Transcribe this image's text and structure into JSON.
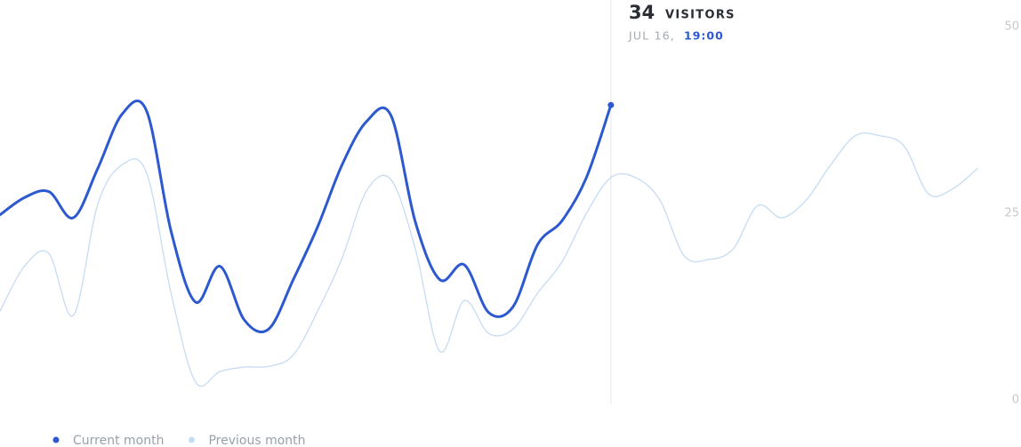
{
  "chart_data": {
    "type": "line",
    "categories": [
      null,
      null,
      null,
      null,
      null,
      null,
      null,
      null,
      null,
      null,
      null,
      null,
      null,
      null,
      null,
      null,
      null,
      null,
      null,
      null,
      null,
      null,
      null,
      null,
      null,
      null,
      null,
      null,
      null,
      null,
      null,
      null,
      null,
      null,
      null,
      null,
      null,
      null,
      null,
      null,
      null
    ],
    "series": [
      {
        "name": "Current month",
        "color": "#2c58d0",
        "values": [
          24.8,
          27.1,
          27.9,
          24.4,
          31,
          38.3,
          38.7,
          22.6,
          13.1,
          17.9,
          10.7,
          9.5,
          16.1,
          23.2,
          31.5,
          37.3,
          38.1,
          23.8,
          16.1,
          18.1,
          11.7,
          12.5,
          20.8,
          24,
          29.8,
          39.5,
          null,
          null,
          null,
          null,
          null,
          null,
          null,
          null,
          null,
          null,
          null,
          null,
          null,
          null,
          null
        ]
      },
      {
        "name": "Previous month",
        "color": "#c6dcf3",
        "values": [
          11.9,
          17.9,
          19.6,
          11.3,
          26.2,
          31.5,
          30.4,
          14.3,
          2.4,
          3.8,
          4.4,
          4.5,
          6,
          11.9,
          19,
          28,
          29.5,
          20.2,
          6.5,
          13.3,
          8.9,
          9.5,
          14.3,
          18.5,
          25,
          29.8,
          29.8,
          26.8,
          19.3,
          18.8,
          20.2,
          26,
          24.4,
          26.8,
          31.5,
          35.4,
          35.4,
          34,
          27.6,
          28.3,
          31
        ]
      }
    ],
    "ylim": [
      0,
      50
    ],
    "yticks": [
      0,
      25,
      50
    ],
    "tooltip": {
      "value": "34",
      "unit": "VISITORS",
      "date": "JUL 16,",
      "time": "19:00"
    }
  }
}
